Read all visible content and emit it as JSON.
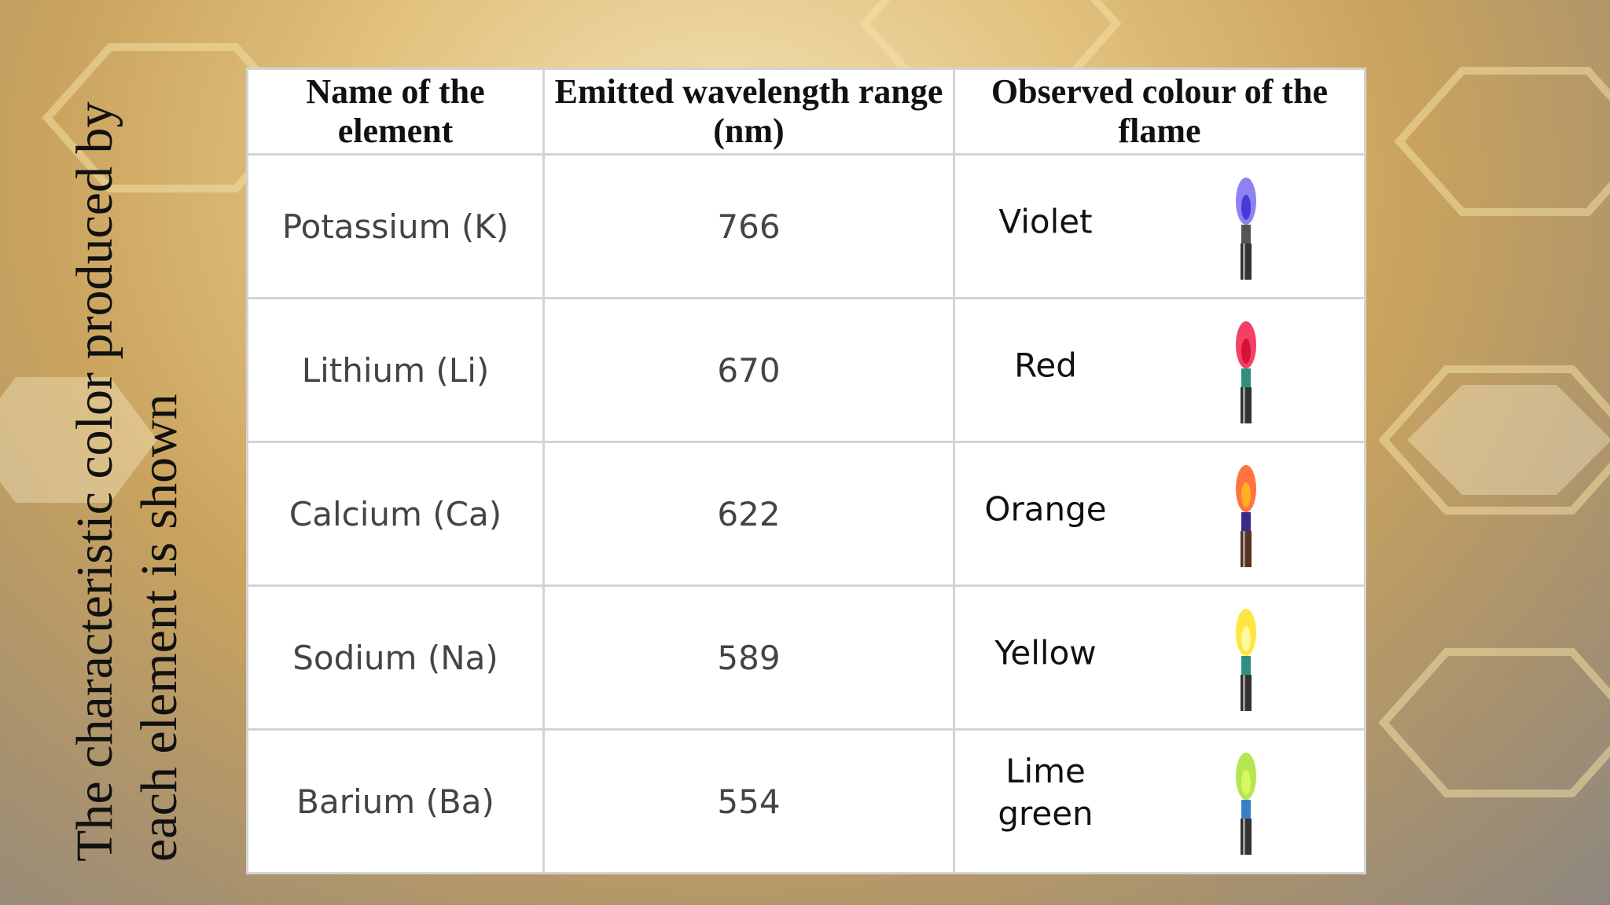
{
  "slide": {
    "title": "The characteristic color produced by each element is shown"
  },
  "table": {
    "header": [
      "Name of the element",
      "Emitted wavelength range (nm)",
      "Observed colour of the flame"
    ],
    "rows": [
      [
        "Potassium (K)",
        "766",
        "Violet"
      ],
      [
        "Lithium (Li)",
        "670",
        "Red"
      ],
      [
        "Calcium (Ca)",
        "622",
        "Orange"
      ],
      [
        "Sodium (Na)",
        "589",
        "Yellow"
      ],
      [
        "Barium (Ba)",
        "554",
        "Lime green"
      ]
    ]
  }
}
